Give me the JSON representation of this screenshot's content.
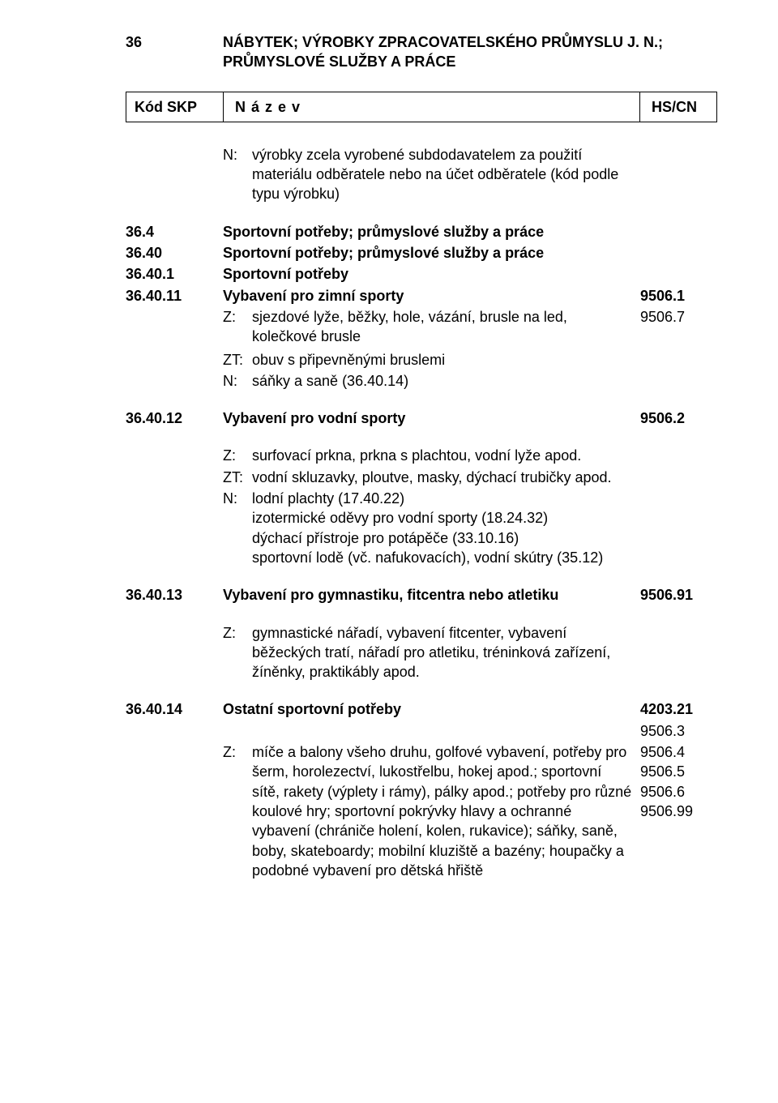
{
  "header": {
    "code": "36",
    "title": "NÁBYTEK; VÝROBKY ZPRACOVATELSKÉHO PRŮMYSLU J. N.; PRŮMYSLOVÉ SLUŽBY A PRÁCE"
  },
  "columns": {
    "code": "Kód SKP",
    "name": "N á z e v",
    "hs": "HS/CN"
  },
  "intro_note": {
    "label": "N:",
    "text": "výrobky zcela vyrobené subdodavatelem za použití materiálu odběratele nebo na účet odběratele (kód podle typu výrobku)"
  },
  "r_364": {
    "code": "36.4",
    "name": "Sportovní potřeby; průmyslové služby a práce"
  },
  "r_3640": {
    "code": "36.40",
    "name": "Sportovní potřeby; průmyslové služby a práce"
  },
  "r_36401": {
    "code": "36.40.1",
    "name": "Sportovní potřeby"
  },
  "r_364011": {
    "code": "36.40.11",
    "name": "Vybavení pro zimní sporty",
    "hs1": "9506.1",
    "hs2": "9506.7"
  },
  "r_364011_z": {
    "label": "Z:",
    "text": "sjezdové lyže, běžky, hole, vázání, brusle na led, kolečkové brusle"
  },
  "r_364011_zt": {
    "label": "ZT:",
    "text": "obuv s připevněnými bruslemi"
  },
  "r_364011_n": {
    "label": "N:",
    "text": "sáňky a saně (36.40.14)"
  },
  "r_364012": {
    "code": "36.40.12",
    "name": "Vybavení pro vodní sporty",
    "hs1": "9506.2"
  },
  "r_364012_z": {
    "label": "Z:",
    "text": "surfovací prkna, prkna s plachtou, vodní lyže apod."
  },
  "r_364012_zt": {
    "label": "ZT:",
    "text": "vodní skluzavky, ploutve, masky, dýchací trubičky apod."
  },
  "r_364012_n": {
    "label": "N:",
    "text": "lodní plachty (17.40.22)\nizotermické oděvy pro vodní sporty (18.24.32)\ndýchací přístroje pro potápěče (33.10.16)\nsportovní lodě (vč. nafukovacích), vodní skútry (35.12)"
  },
  "r_364013": {
    "code": "36.40.13",
    "name": "Vybavení pro gymnastiku, fitcentra nebo atletiku",
    "hs1": "9506.91"
  },
  "r_364013_z": {
    "label": "Z:",
    "text": "gymnastické nářadí, vybavení fitcenter, vybavení běžeckých tratí, nářadí pro atletiku, tréninková zařízení, žíněnky, praktikábly apod."
  },
  "r_364014": {
    "code": "36.40.14",
    "name": "Ostatní sportovní potřeby",
    "hs1": "4203.21",
    "hs2": "9506.3",
    "hs3": "9506.4",
    "hs4": "9506.5",
    "hs5": "9506.6",
    "hs6": "9506.99"
  },
  "r_364014_z": {
    "label": "Z:",
    "text": "míče a balony všeho druhu, golfové vybavení, potřeby pro šerm, horolezectví, lukostřelbu, hokej apod.; sportovní sítě, rakety (výplety i rámy), pálky apod.; potřeby pro různé koulové hry; sportovní pokrývky hlavy a ochranné vybavení (chrániče holení, kolen, rukavice); sáňky, saně, boby, skateboardy; mobilní kluziště a bazény; houpačky a podobné vybavení pro dětská hřiště"
  }
}
